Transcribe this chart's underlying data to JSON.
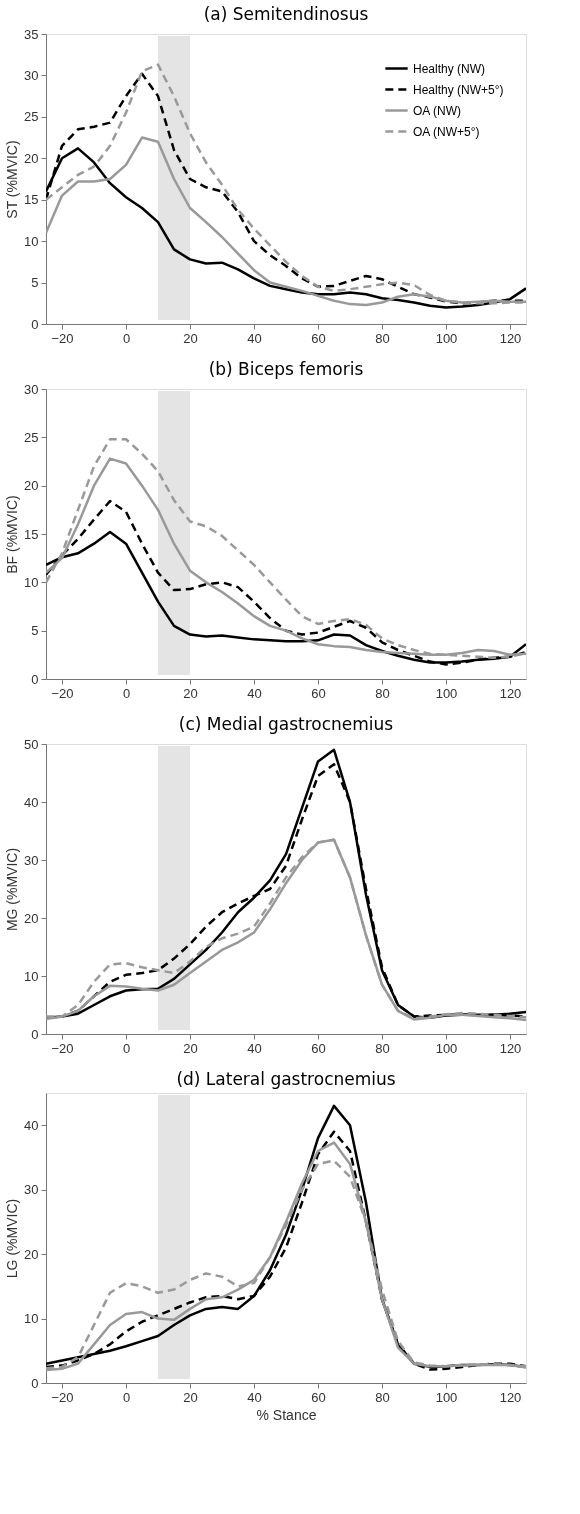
{
  "chart_data": [
    {
      "type": "line",
      "title": "(a) Semitendinosus",
      "ylabel": "ST (%MVIC)",
      "xlim": [
        -25,
        125
      ],
      "xticks": [
        -20,
        0,
        20,
        40,
        60,
        80,
        100,
        120
      ],
      "ylim": [
        0,
        35
      ],
      "yticks": [
        0,
        5,
        10,
        15,
        20,
        25,
        30,
        35
      ],
      "grid": false,
      "legend": "top right",
      "bands": [
        {
          "axis": "x",
          "from": 10,
          "to": 20,
          "color": "#e4e4e4"
        }
      ],
      "x": [
        -25,
        -20,
        -15,
        -10,
        -5,
        0,
        5,
        10,
        15,
        20,
        25,
        30,
        35,
        40,
        45,
        50,
        55,
        60,
        65,
        70,
        75,
        80,
        85,
        90,
        95,
        100,
        105,
        110,
        115,
        120,
        125
      ],
      "series": [
        {
          "name": "Healthy (NW)",
          "color": "#000000",
          "line_style": "solid",
          "values": [
            16,
            20,
            21.2,
            19.5,
            17,
            15.3,
            14,
            12.3,
            9,
            7.8,
            7.3,
            7.4,
            6.6,
            5.5,
            4.6,
            4.2,
            3.8,
            3.6,
            3.6,
            3.8,
            3.6,
            3.1,
            2.9,
            2.6,
            2.2,
            2.0,
            2.1,
            2.3,
            2.6,
            3.0,
            4.3
          ]
        },
        {
          "name": "Healthy (NW+5°)",
          "color": "#000000",
          "line_style": "dashed",
          "values": [
            15,
            21.5,
            23.5,
            23.8,
            24.3,
            27.5,
            30.2,
            27.5,
            21,
            17.5,
            16.5,
            16,
            13.5,
            10,
            8.3,
            7,
            5.5,
            4.5,
            4.6,
            5.2,
            5.8,
            5.4,
            4.5,
            3.6,
            3.2,
            2.7,
            2.5,
            2.6,
            2.8,
            2.8,
            2.8
          ]
        },
        {
          "name": "OA (NW)",
          "color": "#999999",
          "line_style": "solid",
          "values": [
            11,
            15.5,
            17.2,
            17.2,
            17.5,
            19.2,
            22.5,
            22,
            17.5,
            14,
            12.3,
            10.5,
            8.5,
            6.5,
            5,
            4.5,
            4,
            3.4,
            2.8,
            2.4,
            2.3,
            2.6,
            3.3,
            3.6,
            3.3,
            2.8,
            2.6,
            2.7,
            2.8,
            2.7,
            2.7
          ]
        },
        {
          "name": "OA (NW+5°)",
          "color": "#999999",
          "line_style": "dashed",
          "values": [
            15,
            16.5,
            18,
            19,
            21.5,
            25.5,
            30.5,
            31.3,
            27.5,
            23,
            19.5,
            16.8,
            13.8,
            11.5,
            9.5,
            7.5,
            5.8,
            4.5,
            4,
            4.2,
            4.5,
            4.8,
            5,
            4.7,
            3.5,
            2.8,
            2.6,
            2.5,
            2.5,
            2.6,
            2.6
          ]
        }
      ]
    },
    {
      "type": "line",
      "title": "(b) Biceps femoris",
      "ylabel": "BF (%MVIC)",
      "xlim": [
        -25,
        125
      ],
      "xticks": [
        -20,
        0,
        20,
        40,
        60,
        80,
        100,
        120
      ],
      "ylim": [
        0,
        30
      ],
      "yticks": [
        0,
        5,
        10,
        15,
        20,
        25,
        30
      ],
      "grid": false,
      "legend": false,
      "bands": [
        {
          "axis": "x",
          "from": 10,
          "to": 20,
          "color": "#e4e4e4"
        }
      ],
      "x": [
        -25,
        -20,
        -15,
        -10,
        -5,
        0,
        5,
        10,
        15,
        20,
        25,
        30,
        35,
        40,
        45,
        50,
        55,
        60,
        65,
        70,
        75,
        80,
        85,
        90,
        95,
        100,
        105,
        110,
        115,
        120,
        125
      ],
      "series": [
        {
          "color": "#000000",
          "line_style": "solid",
          "values": [
            11.8,
            12.6,
            13,
            14,
            15.2,
            14,
            11,
            8,
            5.5,
            4.6,
            4.4,
            4.5,
            4.3,
            4.1,
            4,
            3.9,
            3.9,
            4,
            4.6,
            4.5,
            3.5,
            2.9,
            2.4,
            2,
            1.7,
            1.7,
            1.8,
            2,
            2.1,
            2.3,
            3.6
          ]
        },
        {
          "color": "#000000",
          "line_style": "dashed",
          "values": [
            10.8,
            12.8,
            14.5,
            16.5,
            18.4,
            17.3,
            14,
            11,
            9.2,
            9.3,
            9.8,
            10,
            9.5,
            8,
            6.3,
            5,
            4.6,
            4.8,
            5.4,
            6,
            5.3,
            3.8,
            3,
            2.4,
            1.8,
            1.5,
            1.7,
            2,
            2.2,
            2.3,
            2.8
          ]
        },
        {
          "color": "#999999",
          "line_style": "solid",
          "values": [
            11,
            12.5,
            16,
            20,
            22.8,
            22.3,
            20,
            17.5,
            14,
            11.2,
            10,
            9,
            7.8,
            6.5,
            5.5,
            5,
            4.2,
            3.6,
            3.4,
            3.3,
            3,
            2.8,
            2.7,
            2.6,
            2.5,
            2.5,
            2.7,
            3,
            2.9,
            2.5,
            2.6
          ]
        },
        {
          "color": "#999999",
          "line_style": "dashed",
          "values": [
            10,
            13,
            17.5,
            22,
            24.8,
            24.8,
            23.3,
            21.5,
            18.5,
            16.3,
            15.8,
            14.8,
            13.3,
            11.8,
            10,
            8.2,
            6.5,
            5.7,
            6,
            6.2,
            5.6,
            4.2,
            3.5,
            3,
            2.6,
            2.5,
            2.4,
            2.3,
            2.2,
            2.3,
            2.7
          ]
        }
      ]
    },
    {
      "type": "line",
      "title": "(c) Medial gastrocnemius",
      "ylabel": "MG (%MVIC)",
      "xlim": [
        -25,
        125
      ],
      "xticks": [
        -20,
        0,
        20,
        40,
        60,
        80,
        100,
        120
      ],
      "ylim": [
        0,
        50
      ],
      "yticks": [
        0,
        10,
        20,
        30,
        40,
        50
      ],
      "grid": false,
      "legend": false,
      "bands": [
        {
          "axis": "x",
          "from": 10,
          "to": 20,
          "color": "#e4e4e4"
        }
      ],
      "x": [
        -25,
        -20,
        -15,
        -10,
        -5,
        0,
        5,
        10,
        15,
        20,
        25,
        30,
        35,
        40,
        45,
        50,
        55,
        60,
        65,
        70,
        75,
        80,
        85,
        90,
        95,
        100,
        105,
        110,
        115,
        120,
        125
      ],
      "series": [
        {
          "color": "#000000",
          "line_style": "solid",
          "values": [
            2.8,
            3,
            3.5,
            5,
            6.5,
            7.5,
            7.7,
            7.8,
            9.5,
            12,
            14.5,
            17.5,
            21,
            23.5,
            26.5,
            31,
            39,
            47,
            49,
            40,
            24,
            11,
            5,
            3,
            2.8,
            3.2,
            3.3,
            3.3,
            3.3,
            3.5,
            3.8
          ]
        },
        {
          "color": "#000000",
          "line_style": "dashed",
          "values": [
            2.8,
            3,
            4,
            6.5,
            9,
            10.2,
            10.5,
            11,
            13,
            15.5,
            18.5,
            21,
            22.5,
            23.8,
            25,
            29,
            37,
            44.5,
            46.5,
            40,
            25,
            11.5,
            5,
            3,
            3.2,
            3.3,
            3.4,
            3.2,
            3.3,
            3.2,
            3
          ]
        },
        {
          "color": "#999999",
          "line_style": "solid",
          "values": [
            2.6,
            3,
            4,
            6.5,
            8.3,
            8.2,
            7.8,
            7.5,
            8.5,
            10.5,
            12.5,
            14.5,
            15.8,
            17.5,
            21.5,
            26,
            30,
            33,
            33.5,
            27,
            17,
            8.5,
            4,
            2.5,
            2.8,
            3.3,
            3.3,
            3.1,
            2.9,
            2.7,
            2.4
          ]
        },
        {
          "color": "#999999",
          "line_style": "dashed",
          "values": [
            3,
            3,
            5,
            9,
            12,
            12.2,
            11.5,
            11,
            10.5,
            12.5,
            15,
            16.5,
            17.3,
            18.5,
            22.5,
            27,
            30.5,
            33,
            33.5,
            27,
            17,
            8.5,
            4,
            2.7,
            3,
            3.4,
            3.6,
            3.5,
            3.3,
            3.1,
            2.9
          ]
        }
      ]
    },
    {
      "type": "line",
      "title": "(d) Lateral gastrocnemius",
      "ylabel": "LG (%MVIC)",
      "xlabel": "% Stance",
      "xlim": [
        -25,
        125
      ],
      "xticks": [
        -20,
        0,
        20,
        40,
        60,
        80,
        100,
        120
      ],
      "ylim": [
        0,
        45
      ],
      "yticks": [
        0,
        10,
        20,
        30,
        40
      ],
      "grid": false,
      "legend": false,
      "bands": [
        {
          "axis": "x",
          "from": 10,
          "to": 20,
          "color": "#e4e4e4"
        }
      ],
      "x": [
        -25,
        -20,
        -15,
        -10,
        -5,
        0,
        5,
        10,
        15,
        20,
        25,
        30,
        35,
        40,
        45,
        50,
        55,
        60,
        65,
        70,
        75,
        80,
        85,
        90,
        95,
        100,
        105,
        110,
        115,
        120,
        125
      ],
      "series": [
        {
          "color": "#000000",
          "line_style": "solid",
          "values": [
            3,
            3.5,
            4,
            4.5,
            5,
            5.7,
            6.5,
            7.3,
            9,
            10.5,
            11.5,
            11.8,
            11.5,
            13.5,
            17.5,
            23,
            30,
            38,
            43,
            40,
            28,
            13,
            6,
            3,
            2.5,
            2.6,
            2.8,
            2.8,
            2.9,
            2.8,
            2.5
          ]
        },
        {
          "color": "#000000",
          "line_style": "dashed",
          "values": [
            2.5,
            2.7,
            3.5,
            4.5,
            6,
            8,
            9.5,
            10.5,
            11.5,
            12.5,
            13.3,
            13.5,
            13,
            13.5,
            16.5,
            21,
            28,
            35.5,
            39,
            36,
            25,
            13,
            6,
            3,
            2.1,
            2.2,
            2.5,
            2.8,
            3,
            3,
            2.6
          ]
        },
        {
          "color": "#999999",
          "line_style": "solid",
          "values": [
            2,
            2.2,
            3,
            6,
            9,
            10.7,
            11,
            10,
            9.8,
            11.5,
            13,
            13.3,
            14.5,
            16,
            19.5,
            25,
            31,
            36,
            37.3,
            34,
            25,
            13,
            5.5,
            3,
            2.6,
            2.6,
            2.7,
            2.8,
            2.8,
            2.8,
            2.4
          ]
        },
        {
          "color": "#999999",
          "line_style": "dashed",
          "values": [
            2.3,
            2.5,
            4,
            9,
            14,
            15.5,
            15,
            14,
            14.5,
            16,
            17,
            16.5,
            15,
            15.5,
            19.5,
            24.5,
            30,
            34,
            34.5,
            32,
            25,
            14.5,
            6.5,
            3.2,
            2.7,
            2.6,
            2.8,
            2.9,
            2.9,
            2.8,
            2.6
          ]
        }
      ]
    }
  ]
}
